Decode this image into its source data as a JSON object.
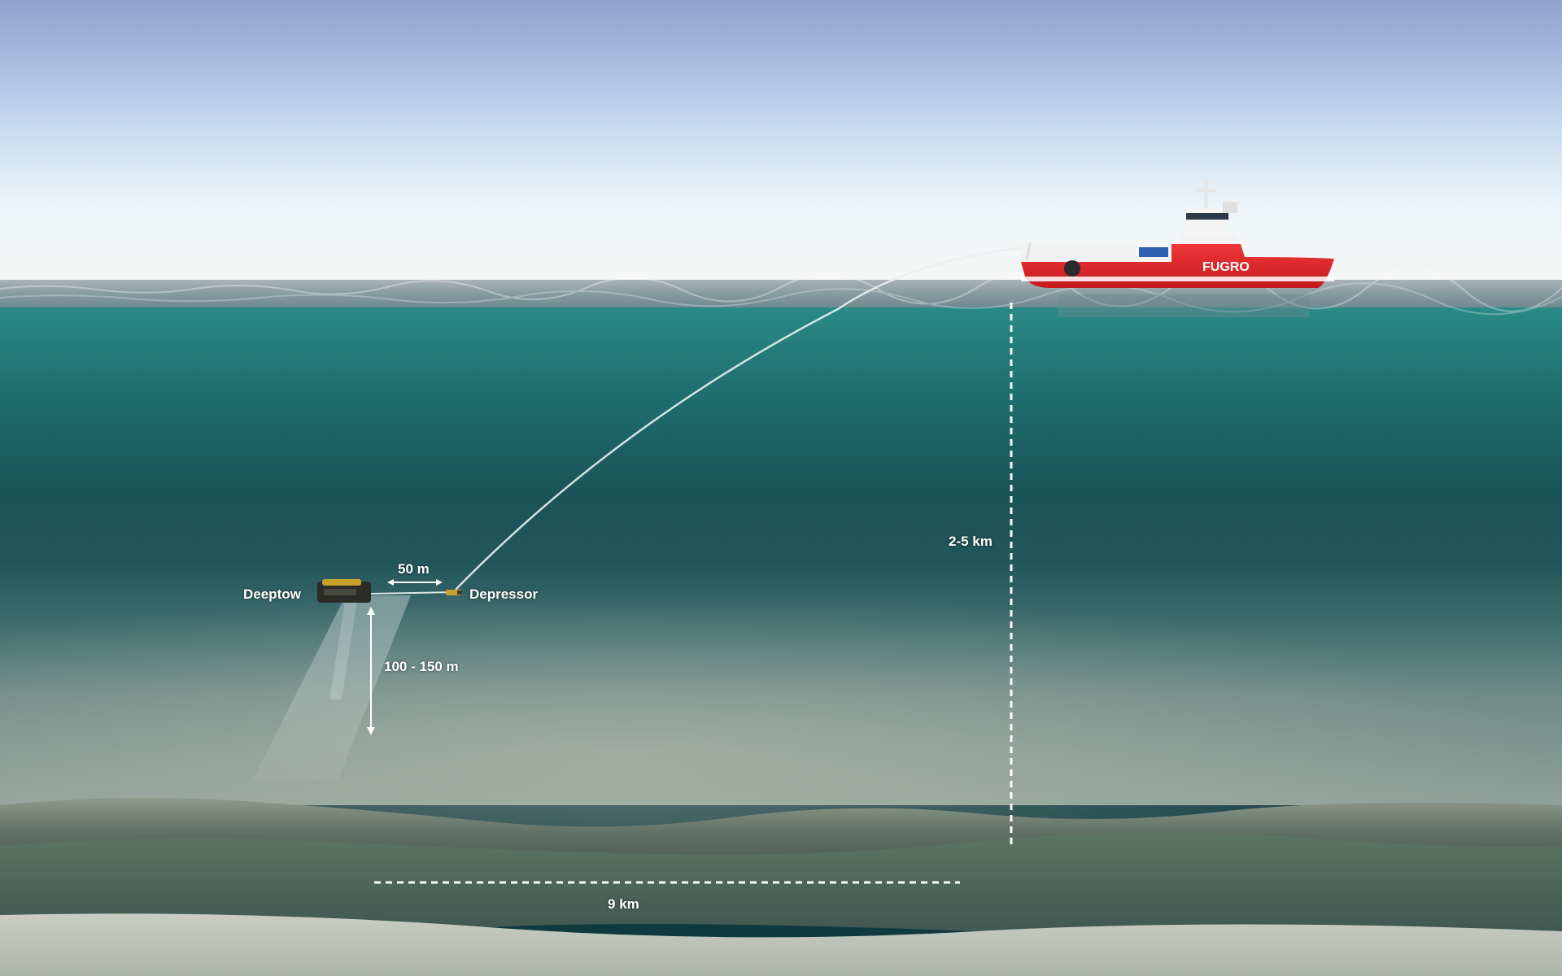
{
  "labels": {
    "deeptow": "Deeptow",
    "depressor": "Depressor",
    "tether_length": "50 m",
    "altitude": "100 - 150 m",
    "water_depth": "2-5 km",
    "swath_width": "9 km",
    "ship_brand": "FUGRO"
  },
  "colors": {
    "ship_hull": "#e3262a",
    "ship_superstructure": "#f2f2f2",
    "water_top": "#2a8c88",
    "seabed": "#9aa79c"
  }
}
